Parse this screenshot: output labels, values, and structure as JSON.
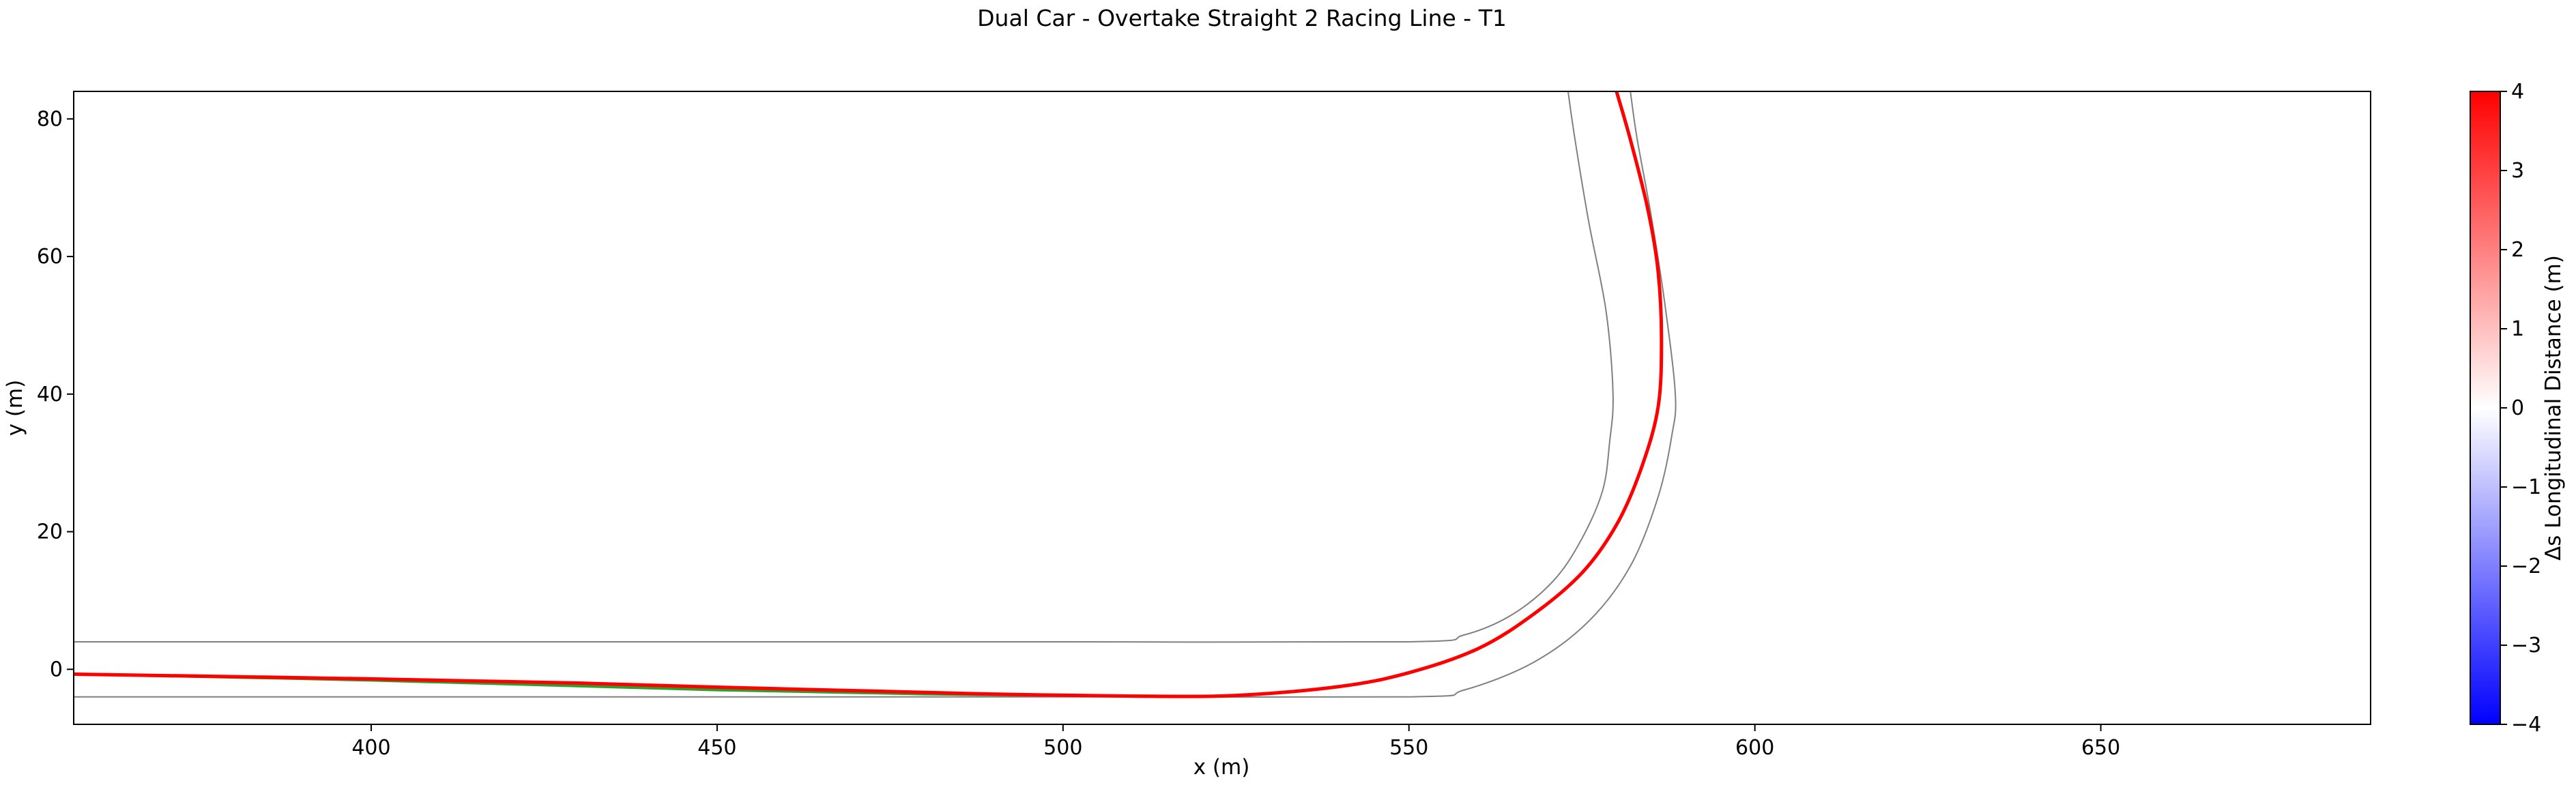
{
  "chart_data": {
    "type": "line",
    "title": "Dual Car - Overtake Straight 2 Racing Line - T1",
    "xlabel": "x (m)",
    "ylabel": "y (m)",
    "xlim": [
      357,
      689
    ],
    "ylim": [
      -8,
      84
    ],
    "xticks": [
      "400",
      "450",
      "500",
      "550",
      "600",
      "650"
    ],
    "xtick_values": [
      400,
      450,
      500,
      550,
      600,
      650
    ],
    "yticks": [
      "0",
      "20",
      "40",
      "60",
      "80"
    ],
    "ytick_values": [
      0,
      20,
      40,
      60,
      80
    ],
    "grid": false,
    "colorbar": {
      "label": "Δs Longitudinal Distance (m)",
      "range": [
        -4,
        4
      ],
      "ticks": [
        "−4",
        "−3",
        "−2",
        "−1",
        "0",
        "1",
        "2",
        "3",
        "4"
      ],
      "tick_values": [
        -4,
        -3,
        -2,
        -1,
        0,
        1,
        2,
        3,
        4
      ],
      "colors": [
        "#0000ff",
        "#ffffff",
        "#ff0000"
      ]
    },
    "series": [
      {
        "role": "track-left-boundary",
        "color": "#808080",
        "x": [
          357,
          400,
          450,
          500,
          550,
          558,
          565,
          571,
          575,
          578,
          579,
          579.5,
          578.5,
          576,
          574,
          573
        ],
        "y": [
          4,
          4,
          4,
          4,
          4,
          5,
          8,
          13,
          19,
          26,
          33,
          40,
          52,
          65,
          77,
          84
        ]
      },
      {
        "role": "track-right-boundary",
        "color": "#808080",
        "x": [
          357,
          400,
          450,
          500,
          550,
          558,
          568,
          576,
          582,
          586,
          588,
          588.5,
          587,
          585,
          583,
          582
        ],
        "y": [
          -4,
          -4,
          -4,
          -4,
          -4,
          -3,
          1,
          7,
          15,
          25,
          34,
          40,
          53,
          66,
          77,
          84
        ]
      },
      {
        "role": "racing-line-car-2",
        "color": "#2ca02c",
        "x": [
          357,
          400,
          450,
          480,
          500,
          520
        ],
        "y": [
          -0.7,
          -1.6,
          -3.0,
          -3.6,
          -3.8,
          -3.9
        ]
      },
      {
        "role": "racing-line-car-1",
        "color": "#ff0000",
        "x": [
          357,
          400,
          430,
          450,
          470,
          490,
          510,
          525,
          540,
          550,
          560,
          568,
          575,
          580,
          583.5,
          586,
          586.5,
          586,
          584.5,
          582,
          580
        ],
        "y": [
          -0.7,
          -1.4,
          -2.0,
          -2.6,
          -3.1,
          -3.6,
          -3.9,
          -3.8,
          -2.5,
          -0.5,
          3.0,
          8.0,
          14.0,
          21.0,
          29.0,
          38.0,
          48.0,
          58.0,
          67.0,
          77.0,
          84.0
        ]
      }
    ]
  }
}
